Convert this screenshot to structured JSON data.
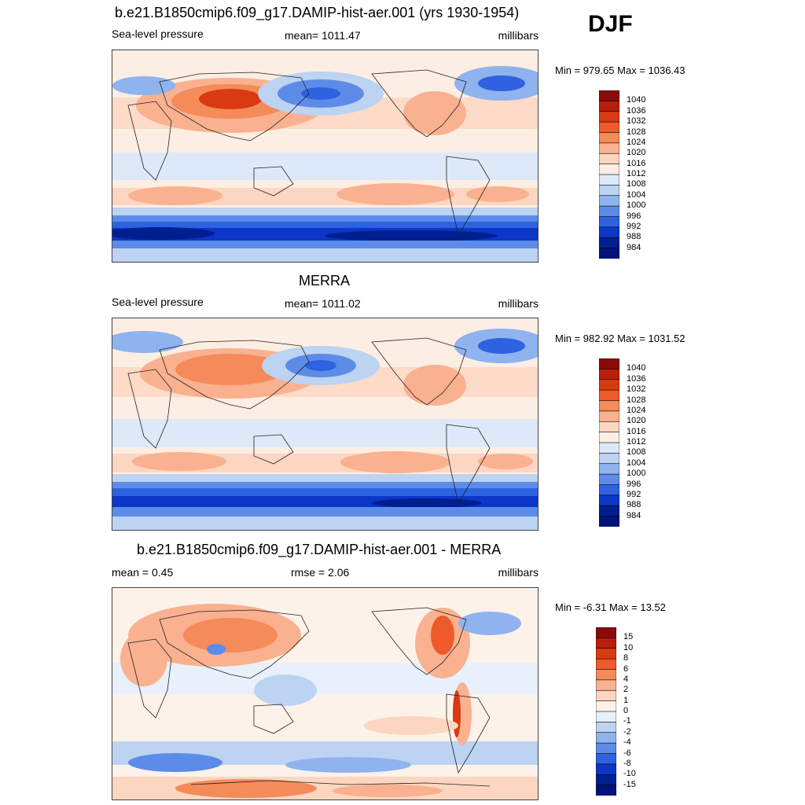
{
  "season": "DJF",
  "panels": [
    {
      "title": "b.e21.B1850cmip6.f09_g17.DAMIP-hist-aer.001 (yrs 1930-1954)",
      "left_label": "Sea-level pressure",
      "center_label": "mean= 1011.47",
      "right_label": "millibars",
      "minmax": "Min = 979.65 Max = 1036.43",
      "colorbar_labels": [
        "1040",
        "1036",
        "1032",
        "1028",
        "1024",
        "1020",
        "1016",
        "1012",
        "1008",
        "1004",
        "1000",
        "996",
        "992",
        "988",
        "984"
      ]
    },
    {
      "title": "MERRA",
      "left_label": "Sea-level pressure",
      "center_label": "mean= 1011.02",
      "right_label": "millibars",
      "minmax": "Min = 982.92 Max = 1031.52",
      "colorbar_labels": [
        "1040",
        "1036",
        "1032",
        "1028",
        "1024",
        "1020",
        "1016",
        "1012",
        "1008",
        "1004",
        "1000",
        "996",
        "992",
        "988",
        "984"
      ]
    },
    {
      "title": "b.e21.B1850cmip6.f09_g17.DAMIP-hist-aer.001 - MERRA",
      "left_label": "mean =   0.45",
      "center_label": "rmse =   2.06",
      "right_label": "millibars",
      "minmax": "Min =  -6.31 Max =  13.52",
      "colorbar_labels": [
        "15",
        "10",
        "8",
        "6",
        "4",
        "2",
        "1",
        "0",
        "-1",
        "-2",
        "-4",
        "-6",
        "-8",
        "-10",
        "-15"
      ]
    }
  ],
  "colors": {
    "abs_scale": [
      "#8b0a0a",
      "#b81f0a",
      "#d83a12",
      "#ee5a2c",
      "#f58a5a",
      "#f9b190",
      "#fcd6c0",
      "#fdeee3",
      "#dde9f8",
      "#bcd3f2",
      "#8fb3ee",
      "#5d8ce8",
      "#2f62e0",
      "#0b36c6",
      "#001f8f",
      "#00137a"
    ],
    "diff_scale": [
      "#8b0a0a",
      "#b81f0a",
      "#d83a12",
      "#ee5a2c",
      "#f58a5a",
      "#f9b190",
      "#fcd6c0",
      "#fdf2e9",
      "#e8f0fb",
      "#bcd3f2",
      "#8fb3ee",
      "#5d8ce8",
      "#2f62e0",
      "#0b36c6",
      "#001f8f",
      "#00137a"
    ]
  }
}
